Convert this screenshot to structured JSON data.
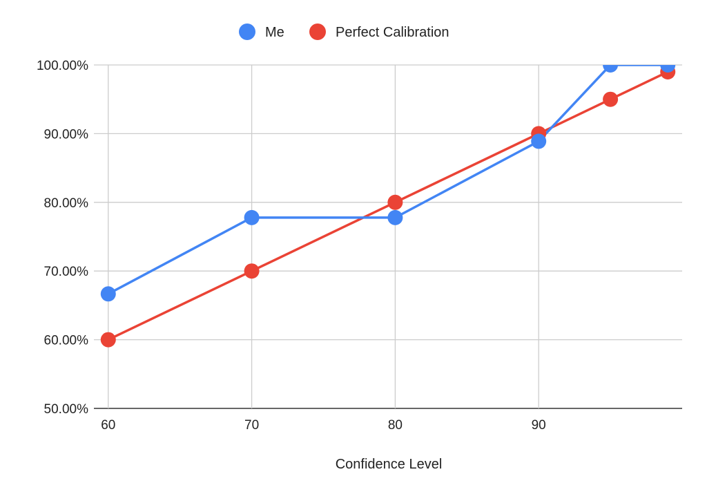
{
  "chart_data": {
    "type": "line",
    "title": "",
    "xlabel": "Confidence Level",
    "ylabel": "",
    "x": [
      60,
      70,
      80,
      90,
      95,
      99
    ],
    "xlim": [
      59,
      100
    ],
    "ylim": [
      50,
      100
    ],
    "xticks": [
      60,
      70,
      80,
      90
    ],
    "xtick_labels": [
      "60",
      "70",
      "80",
      "90"
    ],
    "yticks": [
      50,
      60,
      70,
      80,
      90,
      100
    ],
    "ytick_labels": [
      "50.00%",
      "60.00%",
      "70.00%",
      "80.00%",
      "90.00%",
      "100.00%"
    ],
    "grid": true,
    "legend_position": "top",
    "series": [
      {
        "name": "Me",
        "color": "#4285f4",
        "values": [
          66.67,
          77.78,
          77.78,
          88.89,
          100,
          100
        ]
      },
      {
        "name": "Perfect Calibration",
        "color": "#ea4335",
        "values": [
          60,
          70,
          80,
          90,
          95,
          99
        ]
      }
    ]
  }
}
